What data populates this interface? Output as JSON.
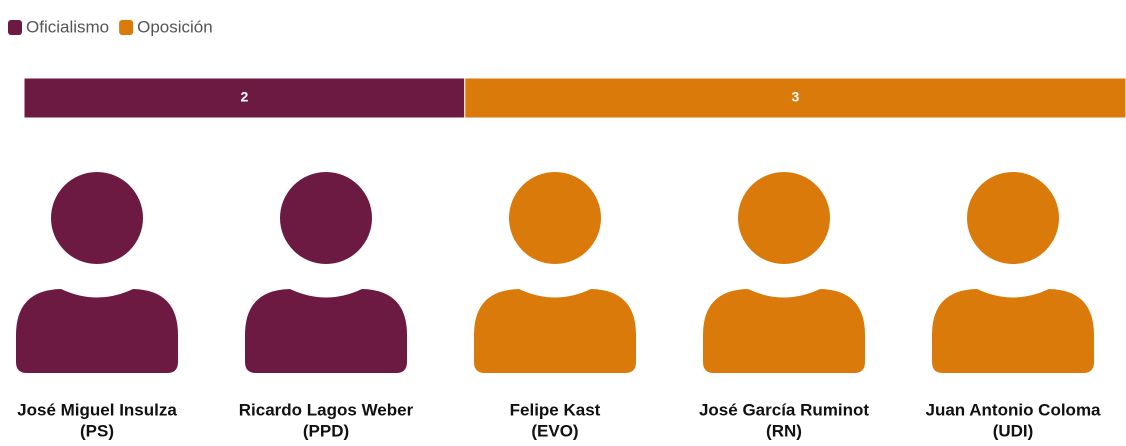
{
  "chart_data": {
    "type": "stacked-bar",
    "series": [
      {
        "name": "Oficialismo",
        "color": "#6d1a42",
        "values": [
          2
        ],
        "members": [
          {
            "name": "José Miguel Insulza",
            "party": "(PS)"
          },
          {
            "name": "Ricardo Lagos Weber",
            "party": "(PPD)"
          }
        ]
      },
      {
        "name": "Oposición",
        "color": "#d97a0a",
        "values": [
          3
        ],
        "members": [
          {
            "name": "Felipe Kast",
            "party": "(EVO)"
          },
          {
            "name": "José García Ruminot",
            "party": "(RN)"
          },
          {
            "name": "Juan Antonio Coloma",
            "party": "(UDI)"
          }
        ]
      }
    ],
    "xlim": [
      0,
      5
    ]
  }
}
